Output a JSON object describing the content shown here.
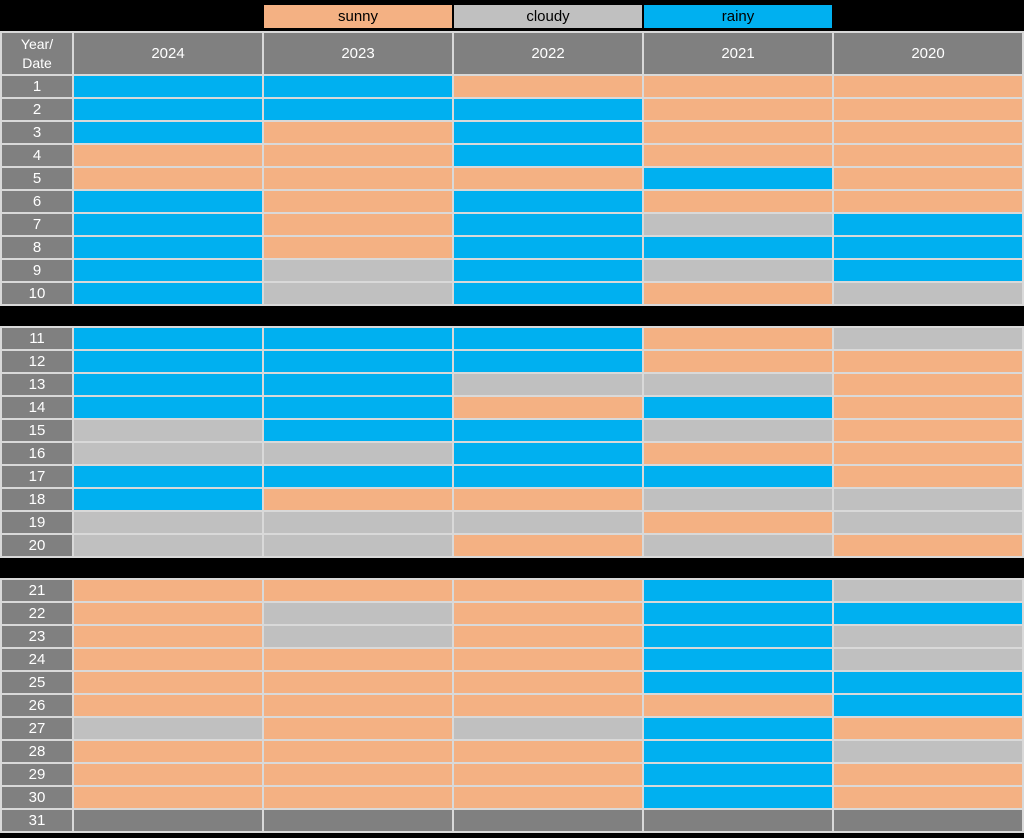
{
  "chart_data": {
    "type": "heatmap",
    "title": "",
    "description": "Daily weather condition by date (rows 1-31) and year (columns 2024-2020)",
    "legend_position": "top",
    "legend": [
      {
        "label": "sunny",
        "code": "sunny"
      },
      {
        "label": "cloudy",
        "code": "cloudy"
      },
      {
        "label": "rainy",
        "code": "rainy"
      }
    ],
    "palette": {
      "sunny": "#F4B183",
      "cloudy": "#C0C0C0",
      "rainy": "#00B0F0",
      "none": "#808080",
      "header": "#808080",
      "gridline": "#D9D9D9",
      "background": "#000000",
      "header_text": "#FFFFFF",
      "legend_text": "#000000"
    },
    "corner_label": "Year/\nDate",
    "columns": [
      "2024",
      "2023",
      "2022",
      "2021",
      "2020"
    ],
    "sections": [
      {
        "rows": [
          {
            "date": "1",
            "values": [
              "rainy",
              "rainy",
              "sunny",
              "sunny",
              "sunny"
            ]
          },
          {
            "date": "2",
            "values": [
              "rainy",
              "rainy",
              "rainy",
              "sunny",
              "sunny"
            ]
          },
          {
            "date": "3",
            "values": [
              "rainy",
              "sunny",
              "rainy",
              "sunny",
              "sunny"
            ]
          },
          {
            "date": "4",
            "values": [
              "sunny",
              "sunny",
              "rainy",
              "sunny",
              "sunny"
            ]
          },
          {
            "date": "5",
            "values": [
              "sunny",
              "sunny",
              "sunny",
              "rainy",
              "sunny"
            ]
          },
          {
            "date": "6",
            "values": [
              "rainy",
              "sunny",
              "rainy",
              "sunny",
              "sunny"
            ]
          },
          {
            "date": "7",
            "values": [
              "rainy",
              "sunny",
              "rainy",
              "cloudy",
              "rainy"
            ]
          },
          {
            "date": "8",
            "values": [
              "rainy",
              "sunny",
              "rainy",
              "rainy",
              "rainy"
            ]
          },
          {
            "date": "9",
            "values": [
              "rainy",
              "cloudy",
              "rainy",
              "cloudy",
              "rainy"
            ]
          },
          {
            "date": "10",
            "values": [
              "rainy",
              "cloudy",
              "rainy",
              "sunny",
              "cloudy"
            ]
          }
        ]
      },
      {
        "rows": [
          {
            "date": "11",
            "values": [
              "rainy",
              "rainy",
              "rainy",
              "sunny",
              "cloudy"
            ]
          },
          {
            "date": "12",
            "values": [
              "rainy",
              "rainy",
              "rainy",
              "sunny",
              "sunny"
            ]
          },
          {
            "date": "13",
            "values": [
              "rainy",
              "rainy",
              "cloudy",
              "cloudy",
              "sunny"
            ]
          },
          {
            "date": "14",
            "values": [
              "rainy",
              "rainy",
              "sunny",
              "rainy",
              "sunny"
            ]
          },
          {
            "date": "15",
            "values": [
              "cloudy",
              "rainy",
              "rainy",
              "cloudy",
              "sunny"
            ]
          },
          {
            "date": "16",
            "values": [
              "cloudy",
              "cloudy",
              "rainy",
              "sunny",
              "sunny"
            ]
          },
          {
            "date": "17",
            "values": [
              "rainy",
              "rainy",
              "rainy",
              "rainy",
              "sunny"
            ]
          },
          {
            "date": "18",
            "values": [
              "rainy",
              "sunny",
              "sunny",
              "cloudy",
              "cloudy"
            ]
          },
          {
            "date": "19",
            "values": [
              "cloudy",
              "cloudy",
              "cloudy",
              "sunny",
              "cloudy"
            ]
          },
          {
            "date": "20",
            "values": [
              "cloudy",
              "cloudy",
              "sunny",
              "cloudy",
              "sunny"
            ]
          }
        ]
      },
      {
        "rows": [
          {
            "date": "21",
            "values": [
              "sunny",
              "sunny",
              "sunny",
              "rainy",
              "cloudy"
            ]
          },
          {
            "date": "22",
            "values": [
              "sunny",
              "cloudy",
              "sunny",
              "rainy",
              "rainy"
            ]
          },
          {
            "date": "23",
            "values": [
              "sunny",
              "cloudy",
              "sunny",
              "rainy",
              "cloudy"
            ]
          },
          {
            "date": "24",
            "values": [
              "sunny",
              "sunny",
              "sunny",
              "rainy",
              "cloudy"
            ]
          },
          {
            "date": "25",
            "values": [
              "sunny",
              "sunny",
              "sunny",
              "rainy",
              "rainy"
            ]
          },
          {
            "date": "26",
            "values": [
              "sunny",
              "sunny",
              "sunny",
              "sunny",
              "rainy"
            ]
          },
          {
            "date": "27",
            "values": [
              "cloudy",
              "sunny",
              "cloudy",
              "rainy",
              "sunny"
            ]
          },
          {
            "date": "28",
            "values": [
              "sunny",
              "sunny",
              "sunny",
              "rainy",
              "cloudy"
            ]
          },
          {
            "date": "29",
            "values": [
              "sunny",
              "sunny",
              "sunny",
              "rainy",
              "sunny"
            ]
          },
          {
            "date": "30",
            "values": [
              "sunny",
              "sunny",
              "sunny",
              "rainy",
              "sunny"
            ]
          },
          {
            "date": "31",
            "values": [
              "none",
              "none",
              "none",
              "none",
              "none"
            ]
          }
        ]
      }
    ]
  }
}
